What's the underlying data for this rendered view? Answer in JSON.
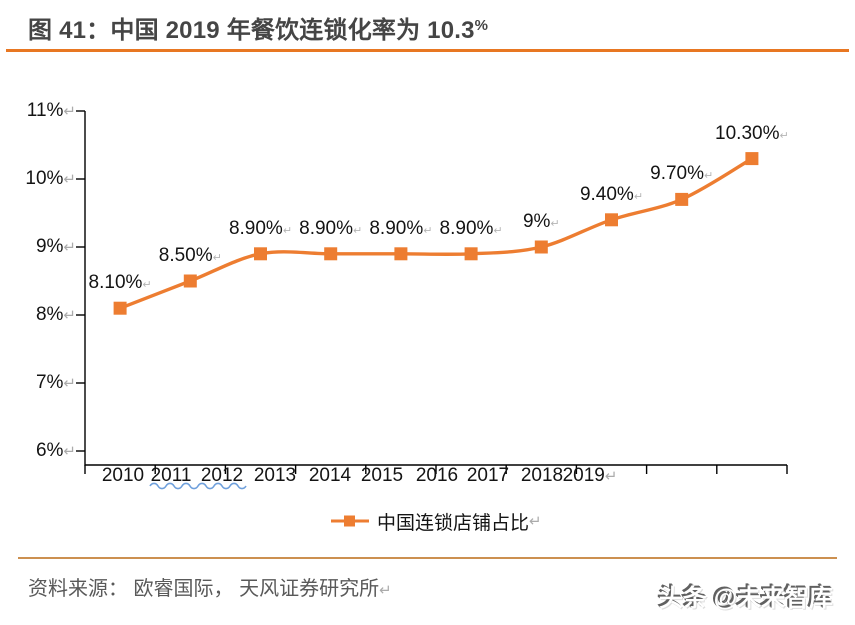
{
  "header": {
    "title_main": "图 41：中国 2019 年餐饮连锁化率为 10.3",
    "title_percent_suffix": "%"
  },
  "marks": {
    "line_break": "↵"
  },
  "chart_data": {
    "type": "line",
    "title": "中国 2019 年餐饮连锁化率为 10.3%",
    "categories": [
      "2010",
      "2011",
      "2012",
      "2013",
      "2014",
      "2015",
      "2016",
      "2017",
      "2018",
      "2019"
    ],
    "series": [
      {
        "name": "中国连锁店铺占比",
        "values": [
          8.1,
          8.5,
          8.9,
          8.9,
          8.9,
          8.9,
          9.0,
          9.4,
          9.7,
          10.3
        ]
      }
    ],
    "point_labels": [
      "8.10%",
      "8.50%",
      "8.90%",
      "8.90%",
      "8.90%",
      "8.90%",
      "9%",
      "9.40%",
      "9.70%",
      "10.30%"
    ],
    "ylim": [
      6,
      11
    ],
    "ytick_labels": [
      "6%",
      "7%",
      "8%",
      "9%",
      "10%",
      "11%"
    ],
    "grid": false,
    "legend": {
      "label": "中国连锁店铺占比",
      "position": "bottom"
    },
    "line_color": "#ED7D31",
    "marker": "square"
  },
  "footer": {
    "source_text": "资料来源： 欧睿国际， 天风证券研究所",
    "watermark_text": "头条 @未来智库"
  },
  "colors": {
    "accent_orange": "#ED7D31",
    "title_rule_orange": "#E87722",
    "footer_rule_tan": "#CC9050",
    "axis_black": "#000000",
    "return_mark_gray": "#ABABAB",
    "squiggle_blue": "#6FA0DC",
    "title_text_gray": "#454545",
    "source_text_gray": "#595959"
  }
}
